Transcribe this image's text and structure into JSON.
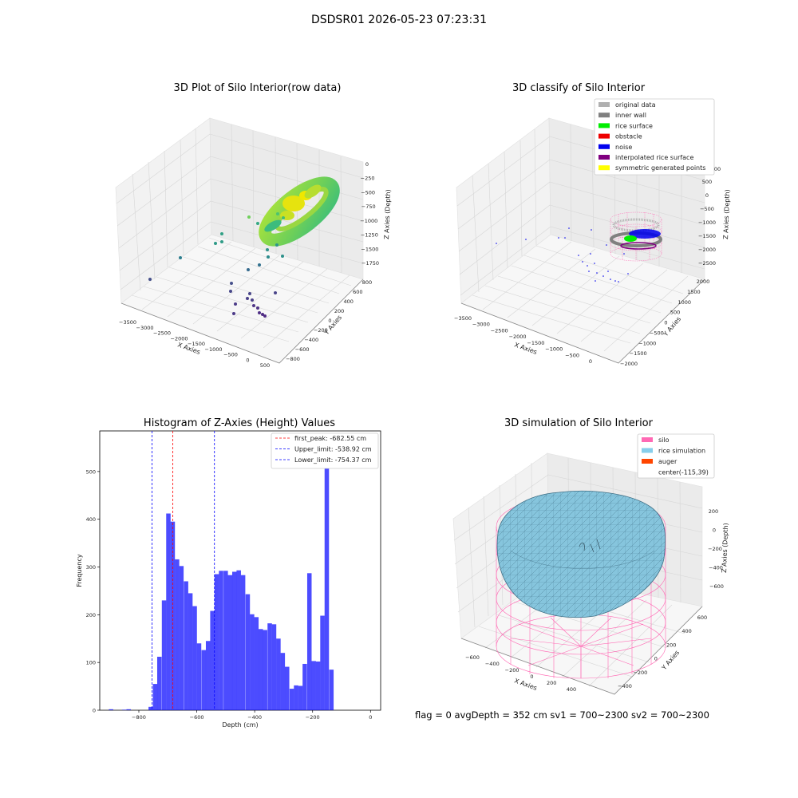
{
  "figure_title": "DSDSR01 2026-05-23 07:23:31",
  "panels": {
    "raw": {
      "title": "3D Plot of Silo Interior(row data)",
      "xlabel": "X Axies",
      "ylabel": "Y Axies",
      "zlabel": "Z Axies (Depth)",
      "xticks": [
        "−3500",
        "−3000",
        "−2500",
        "−2000",
        "−1500",
        "−1000",
        "−500",
        "0",
        "500"
      ],
      "yticks": [
        "−800",
        "−600",
        "−400",
        "−200",
        "0",
        "200",
        "400",
        "600",
        "800"
      ],
      "zticks": [
        "0",
        "−250",
        "−500",
        "−750",
        "−1000",
        "−1250",
        "−1500",
        "−1750"
      ]
    },
    "classify": {
      "title": "3D classify of Silo Interior",
      "xlabel": "X Axies",
      "ylabel": "Y Axies",
      "zlabel": "Z Axies (Depth)",
      "xticks": [
        "−3500",
        "−3000",
        "−2500",
        "−2000",
        "−1500",
        "−1000",
        "−500",
        "0"
      ],
      "yticks": [
        "−2000",
        "−1500",
        "−1000",
        "−500",
        "0",
        "500",
        "1000",
        "1500",
        "2000"
      ],
      "zticks": [
        "500",
        "0",
        "−500",
        "−1000",
        "−1500",
        "−2000",
        "−2500"
      ],
      "ztick_partial": "00",
      "legend": [
        {
          "label": "original data",
          "color": "#b0b0b0"
        },
        {
          "label": "inner wall",
          "color": "#808080"
        },
        {
          "label": "rice surface",
          "color": "#00ee00"
        },
        {
          "label": "obstacle",
          "color": "#ee0000"
        },
        {
          "label": "noise",
          "color": "#0000ee"
        },
        {
          "label": "interpolated rice surface",
          "color": "#800080"
        },
        {
          "label": "symmetric generated points",
          "color": "#ffff00"
        }
      ]
    },
    "simulation": {
      "title": "3D simulation of Silo Interior",
      "xlabel": "X Axies",
      "ylabel": "Y Axies",
      "zlabel": "Z Axies (Depth)",
      "xticks": [
        "−600",
        "−400",
        "−200",
        "0",
        "200",
        "400"
      ],
      "yticks": [
        "−400",
        "−200",
        "0",
        "200",
        "400",
        "600"
      ],
      "zticks": [
        "200",
        "0",
        "−200",
        "−400",
        "−600"
      ],
      "legend": [
        {
          "label": "silo",
          "color": "#ff69b4"
        },
        {
          "label": "rice simulation",
          "color": "#87ceeb"
        },
        {
          "label": "auger",
          "color": "#ff4500"
        },
        {
          "label": "center(-115,39)",
          "color": ""
        }
      ]
    }
  },
  "status": "flag = 0     avgDepth = 352 cm  sv1 = 700~2300  sv2 = 700~2300",
  "chart_data": [
    {
      "type": "scatter",
      "title": "3D Plot of Silo Interior(row data)",
      "xlabel": "X Axies",
      "ylabel": "Y Axies",
      "zlabel": "Z Axies (Depth)"
    },
    {
      "type": "scatter",
      "title": "3D classify of Silo Interior",
      "xlabel": "X Axies",
      "ylabel": "Y Axies",
      "zlabel": "Z Axies (Depth)",
      "legend_position": "top-right",
      "series": [
        {
          "name": "original data"
        },
        {
          "name": "inner wall"
        },
        {
          "name": "rice surface"
        },
        {
          "name": "obstacle"
        },
        {
          "name": "noise"
        },
        {
          "name": "interpolated rice surface"
        },
        {
          "name": "symmetric generated points"
        }
      ]
    },
    {
      "type": "bar",
      "title": "Histogram of Z-Axies (Height) Values",
      "xlabel": "Depth (cm)",
      "ylabel": "Frequency",
      "xlim": [
        -935,
        35
      ],
      "ylim": [
        0,
        585
      ],
      "xticks": [
        -800,
        -600,
        -400,
        -200,
        0
      ],
      "yticks": [
        0,
        100,
        200,
        300,
        400,
        500
      ],
      "bar_color": "#0000ff",
      "bin_width": 15.2,
      "bins": [
        {
          "x": -896,
          "value": 2
        },
        {
          "x": -850,
          "value": 1
        },
        {
          "x": -835,
          "value": 2
        },
        {
          "x": -759,
          "value": 7
        },
        {
          "x": -744,
          "value": 55
        },
        {
          "x": -729,
          "value": 112
        },
        {
          "x": -713,
          "value": 230
        },
        {
          "x": -698,
          "value": 412
        },
        {
          "x": -683,
          "value": 395
        },
        {
          "x": -668,
          "value": 316
        },
        {
          "x": -653,
          "value": 302
        },
        {
          "x": -637,
          "value": 270
        },
        {
          "x": -622,
          "value": 245
        },
        {
          "x": -607,
          "value": 218
        },
        {
          "x": -592,
          "value": 140
        },
        {
          "x": -576,
          "value": 126
        },
        {
          "x": -561,
          "value": 145
        },
        {
          "x": -546,
          "value": 208
        },
        {
          "x": -531,
          "value": 285
        },
        {
          "x": -516,
          "value": 292
        },
        {
          "x": -500,
          "value": 292
        },
        {
          "x": -485,
          "value": 283
        },
        {
          "x": -470,
          "value": 290
        },
        {
          "x": -455,
          "value": 293
        },
        {
          "x": -440,
          "value": 283
        },
        {
          "x": -424,
          "value": 243
        },
        {
          "x": -409,
          "value": 201
        },
        {
          "x": -394,
          "value": 195
        },
        {
          "x": -379,
          "value": 170
        },
        {
          "x": -364,
          "value": 168
        },
        {
          "x": -348,
          "value": 182
        },
        {
          "x": -333,
          "value": 180
        },
        {
          "x": -318,
          "value": 150
        },
        {
          "x": -303,
          "value": 120
        },
        {
          "x": -288,
          "value": 91
        },
        {
          "x": -272,
          "value": 45
        },
        {
          "x": -257,
          "value": 52
        },
        {
          "x": -242,
          "value": 51
        },
        {
          "x": -227,
          "value": 97
        },
        {
          "x": -211,
          "value": 287
        },
        {
          "x": -196,
          "value": 103
        },
        {
          "x": -181,
          "value": 102
        },
        {
          "x": -166,
          "value": 198
        },
        {
          "x": -151,
          "value": 555
        },
        {
          "x": -135,
          "value": 85
        }
      ],
      "lines": [
        {
          "name": "first_peak: -682.55 cm",
          "x": -682.55,
          "color": "#ff0000",
          "style": "dashed"
        },
        {
          "name": "Upper_limit: -538.92 cm",
          "x": -538.92,
          "color": "#0000ff",
          "style": "dashed"
        },
        {
          "name": "Lower_limit: -754.37 cm",
          "x": -754.37,
          "color": "#0000ff",
          "style": "dashed"
        }
      ],
      "legend_position": "top-right",
      "grid": false
    },
    {
      "type": "surface",
      "title": "3D simulation of Silo Interior",
      "xlabel": "X Axies",
      "ylabel": "Y Axies",
      "zlabel": "Z Axies (Depth)",
      "legend_position": "top-right",
      "series": [
        {
          "name": "silo"
        },
        {
          "name": "rice simulation"
        },
        {
          "name": "auger"
        },
        {
          "name": "center(-115,39)"
        }
      ]
    }
  ]
}
